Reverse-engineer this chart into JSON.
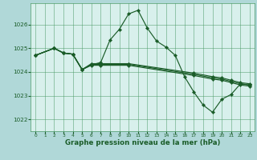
{
  "background_color": "#b0d8d8",
  "plot_background": "#d8f0ec",
  "grid_color": "#4a9966",
  "line_color": "#1a5c28",
  "marker_color": "#1a5c28",
  "xlabel": "Graphe pression niveau de la mer (hPa)",
  "ylim": [
    1021.5,
    1026.9
  ],
  "xlim": [
    -0.5,
    23.5
  ],
  "yticks": [
    1022,
    1023,
    1024,
    1025,
    1026
  ],
  "xticks": [
    0,
    1,
    2,
    3,
    4,
    5,
    6,
    7,
    8,
    9,
    10,
    11,
    12,
    13,
    14,
    15,
    16,
    17,
    18,
    19,
    20,
    21,
    22,
    23
  ],
  "series": [
    {
      "x": [
        0,
        2,
        3,
        4,
        5,
        6,
        7,
        8,
        9,
        10,
        11,
        12,
        13,
        14,
        15,
        16,
        17,
        18,
        19,
        20,
        21,
        22,
        23
      ],
      "y": [
        1024.7,
        1025.0,
        1024.8,
        1024.75,
        1024.1,
        1024.3,
        1024.4,
        1025.35,
        1025.8,
        1026.45,
        1026.6,
        1025.85,
        1025.3,
        1025.05,
        1024.7,
        1023.8,
        1023.15,
        1022.6,
        1022.3,
        1022.85,
        1023.05,
        1023.5,
        1023.45
      ]
    },
    {
      "x": [
        0,
        2,
        3,
        4,
        5,
        6,
        7,
        10,
        17,
        19,
        20,
        21,
        22,
        23
      ],
      "y": [
        1024.7,
        1025.0,
        1024.8,
        1024.75,
        1024.1,
        1024.35,
        1024.35,
        1024.35,
        1023.95,
        1023.8,
        1023.75,
        1023.65,
        1023.55,
        1023.5
      ]
    },
    {
      "x": [
        0,
        2,
        3,
        4,
        5,
        6,
        7,
        10,
        17,
        19,
        20,
        21,
        22,
        23
      ],
      "y": [
        1024.7,
        1025.0,
        1024.8,
        1024.75,
        1024.1,
        1024.32,
        1024.32,
        1024.32,
        1023.9,
        1023.75,
        1023.7,
        1023.6,
        1023.5,
        1023.45
      ]
    },
    {
      "x": [
        0,
        2,
        3,
        4,
        5,
        6,
        7,
        10,
        17,
        19,
        20,
        21,
        22,
        23
      ],
      "y": [
        1024.7,
        1025.0,
        1024.8,
        1024.75,
        1024.1,
        1024.28,
        1024.28,
        1024.28,
        1023.85,
        1023.7,
        1023.65,
        1023.55,
        1023.45,
        1023.4
      ]
    }
  ]
}
